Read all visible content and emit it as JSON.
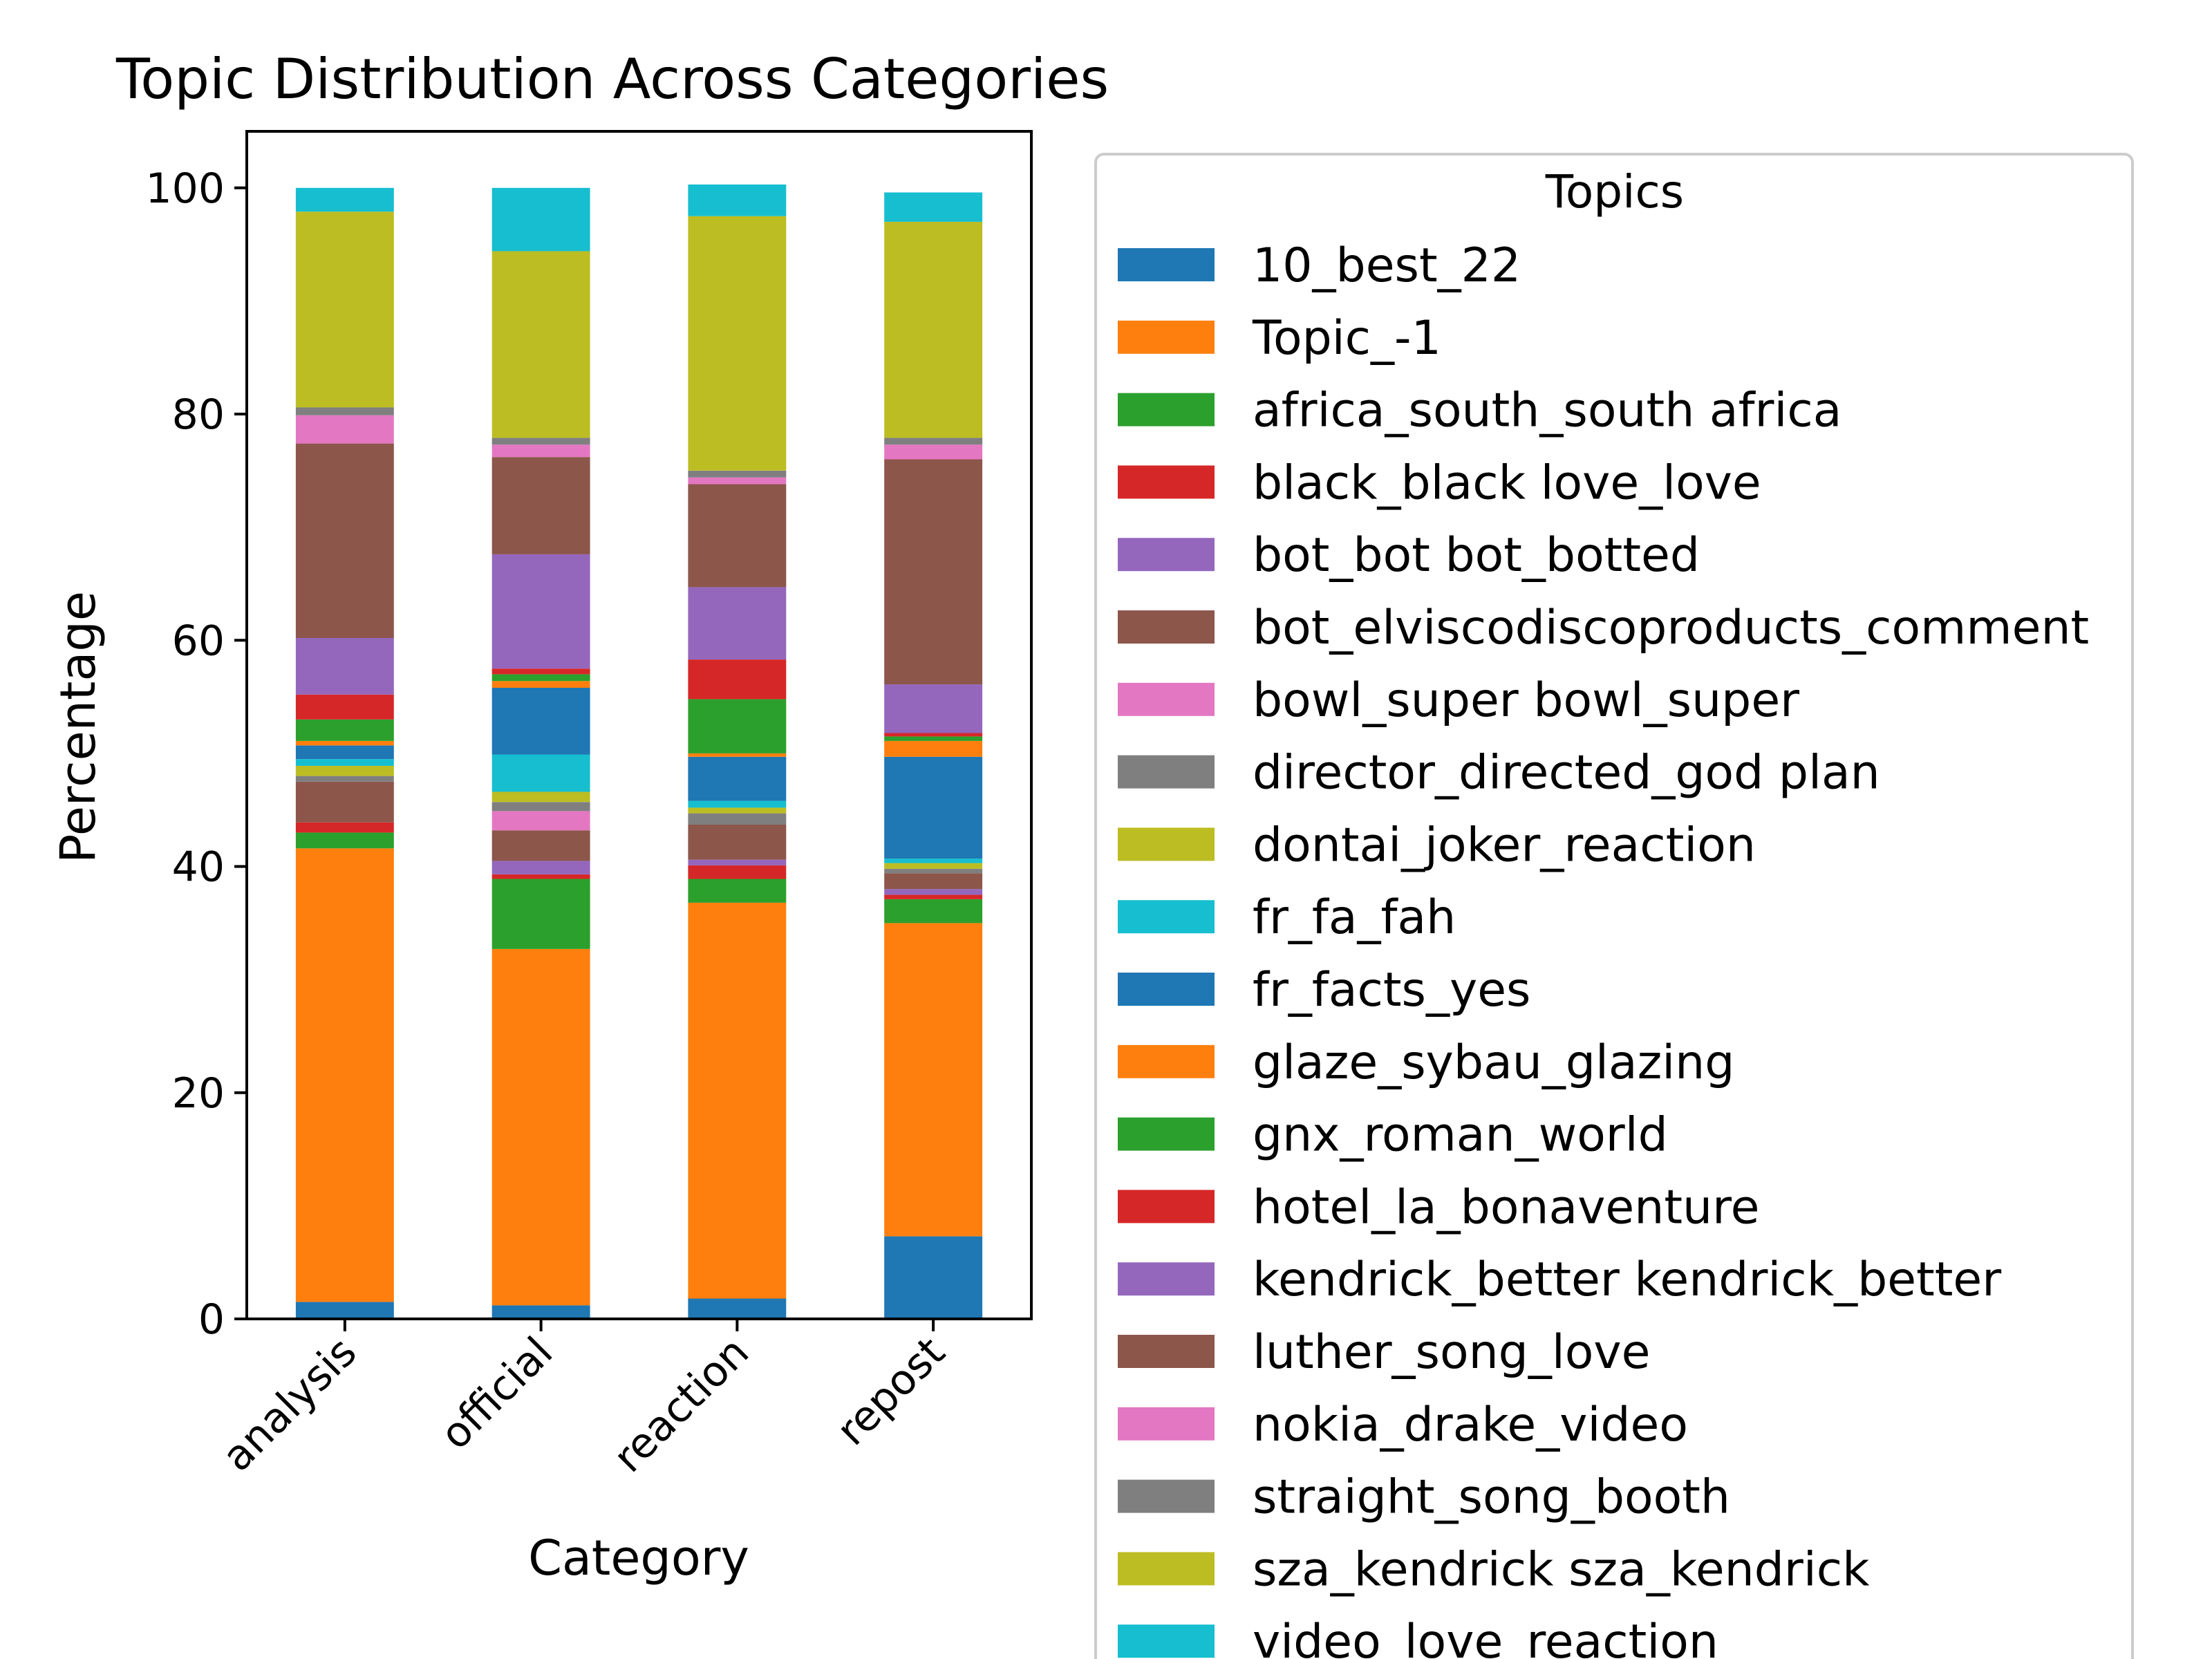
{
  "chart_data": {
    "type": "bar",
    "stacked": true,
    "title": "Topic Distribution Across Categories",
    "xlabel": "Category",
    "ylabel": "Percentage",
    "categories": [
      "analysis",
      "official",
      "reaction",
      "repost"
    ],
    "ylim": [
      0,
      105
    ],
    "yticks": [
      0,
      20,
      40,
      60,
      80,
      100
    ],
    "grid": false,
    "legend": {
      "title": "Topics",
      "placement": "outside-right"
    },
    "series": [
      {
        "name": "10_best_22",
        "color": "#1f77b4",
        "values": [
          1.5,
          1.2,
          1.8,
          7.3
        ]
      },
      {
        "name": "Topic_-1",
        "color": "#ff7f0e",
        "values": [
          40.1,
          31.5,
          35.0,
          27.7
        ]
      },
      {
        "name": "africa_south_south africa",
        "color": "#2ca02c",
        "values": [
          1.4,
          6.2,
          2.1,
          2.1
        ]
      },
      {
        "name": "black_black love_love",
        "color": "#d62728",
        "values": [
          0.9,
          0.4,
          1.2,
          0.4
        ]
      },
      {
        "name": "bot_bot bot_botted",
        "color": "#9467bd",
        "values": [
          0.0,
          1.2,
          0.5,
          0.5
        ]
      },
      {
        "name": "bot_elviscodiscoproducts_comment",
        "color": "#8c564b",
        "values": [
          3.6,
          2.7,
          3.1,
          1.4
        ]
      },
      {
        "name": "bowl_super bowl_super",
        "color": "#e377c2",
        "values": [
          0.0,
          1.7,
          0.0,
          0.0
        ]
      },
      {
        "name": "director_directed_god plan",
        "color": "#7f7f7f",
        "values": [
          0.5,
          0.8,
          1.0,
          0.4
        ]
      },
      {
        "name": "dontai_joker_reaction",
        "color": "#bcbd22",
        "values": [
          0.9,
          0.9,
          0.5,
          0.5
        ]
      },
      {
        "name": "fr_fa_fah",
        "color": "#17becf",
        "values": [
          0.6,
          3.3,
          0.6,
          0.4
        ]
      },
      {
        "name": "fr_facts_yes",
        "color": "#1f77b4",
        "values": [
          1.2,
          5.9,
          3.9,
          9.0
        ]
      },
      {
        "name": "glaze_sybau_glazing",
        "color": "#ff7f0e",
        "values": [
          0.4,
          0.6,
          0.3,
          1.4
        ]
      },
      {
        "name": "gnx_roman_world",
        "color": "#2ca02c",
        "values": [
          1.9,
          0.6,
          4.8,
          0.4
        ]
      },
      {
        "name": "hotel_la_bonaventure",
        "color": "#d62728",
        "values": [
          2.2,
          0.5,
          3.5,
          0.3
        ]
      },
      {
        "name": "kendrick_better kendrick_better",
        "color": "#9467bd",
        "values": [
          5.0,
          10.1,
          6.4,
          4.3
        ]
      },
      {
        "name": "luther_song_love",
        "color": "#8c564b",
        "values": [
          17.2,
          8.6,
          9.1,
          19.9
        ]
      },
      {
        "name": "nokia_drake_video",
        "color": "#e377c2",
        "values": [
          2.5,
          1.1,
          0.6,
          1.3
        ]
      },
      {
        "name": "straight_song_booth",
        "color": "#7f7f7f",
        "values": [
          0.7,
          0.6,
          0.6,
          0.6
        ]
      },
      {
        "name": "sza_kendrick sza_kendrick",
        "color": "#bcbd22",
        "values": [
          17.3,
          16.5,
          22.5,
          19.1
        ]
      },
      {
        "name": "video_love_reaction",
        "color": "#17becf",
        "values": [
          2.1,
          5.6,
          2.8,
          2.6
        ]
      }
    ]
  }
}
